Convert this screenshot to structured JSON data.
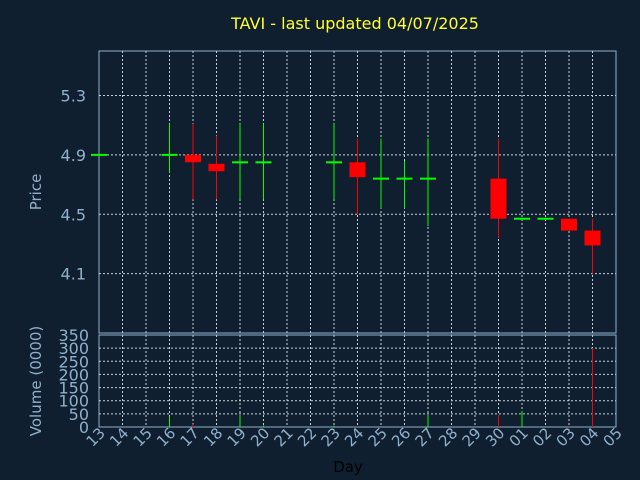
{
  "header": {
    "title": "TAVI - last updated 04/07/2025"
  },
  "chart_data": [
    {
      "type": "candlestick",
      "ylabel": "Price",
      "ylim": [
        3.7,
        5.6
      ],
      "yticks": [
        "4.1",
        "4.5",
        "4.9",
        "5.3"
      ],
      "grid": true,
      "colors": {
        "up": "#00ff00",
        "down": "#ff0000"
      },
      "candles": [
        {
          "day": "13",
          "open": 4.9,
          "high": 4.9,
          "low": 4.9,
          "close": 4.9
        },
        {
          "day": "16",
          "open": 4.9,
          "high": 5.11,
          "low": 4.78,
          "close": 4.9
        },
        {
          "day": "17",
          "open": 4.9,
          "high": 5.11,
          "low": 4.6,
          "close": 4.85
        },
        {
          "day": "18",
          "open": 4.84,
          "high": 5.03,
          "low": 4.6,
          "close": 4.79
        },
        {
          "day": "19",
          "open": 4.85,
          "high": 5.11,
          "low": 4.6,
          "close": 4.85
        },
        {
          "day": "20",
          "open": 4.85,
          "high": 5.11,
          "low": 4.6,
          "close": 4.85
        },
        {
          "day": "23",
          "open": 4.85,
          "high": 5.11,
          "low": 4.6,
          "close": 4.85
        },
        {
          "day": "24",
          "open": 4.85,
          "high": 5.01,
          "low": 4.5,
          "close": 4.75
        },
        {
          "day": "25",
          "open": 4.74,
          "high": 5.01,
          "low": 4.54,
          "close": 4.74
        },
        {
          "day": "26",
          "open": 4.74,
          "high": 4.86,
          "low": 4.54,
          "close": 4.74
        },
        {
          "day": "27",
          "open": 4.74,
          "high": 5.01,
          "low": 4.42,
          "close": 4.74
        },
        {
          "day": "30",
          "open": 4.74,
          "high": 5.01,
          "low": 4.34,
          "close": 4.47
        },
        {
          "day": "01",
          "open": 4.47,
          "high": 4.47,
          "low": 4.47,
          "close": 4.47
        },
        {
          "day": "02",
          "open": 4.47,
          "high": 4.47,
          "low": 4.47,
          "close": 4.47
        },
        {
          "day": "03",
          "open": 4.47,
          "high": 4.47,
          "low": 4.39,
          "close": 4.39
        },
        {
          "day": "04",
          "open": 4.39,
          "high": 4.47,
          "low": 4.1,
          "close": 4.29
        }
      ]
    },
    {
      "type": "bar",
      "ylabel": "Volume (0000)",
      "xlabel": "Day",
      "ylim": [
        0,
        350
      ],
      "yticks": [
        "0",
        "50",
        "100",
        "150",
        "200",
        "250",
        "300",
        "350"
      ],
      "categories": [
        "13",
        "14",
        "15",
        "16",
        "17",
        "18",
        "19",
        "20",
        "21",
        "22",
        "23",
        "24",
        "25",
        "26",
        "27",
        "28",
        "29",
        "30",
        "01",
        "02",
        "03",
        "04",
        "05"
      ],
      "bars": [
        {
          "day": "16",
          "value": 40,
          "color": "#00ff00"
        },
        {
          "day": "17",
          "value": 10,
          "color": "#ff0000"
        },
        {
          "day": "19",
          "value": 45,
          "color": "#00ff00"
        },
        {
          "day": "20",
          "value": 5,
          "color": "#00ff00"
        },
        {
          "day": "23",
          "value": 5,
          "color": "#00ff00"
        },
        {
          "day": "24",
          "value": 5,
          "color": "#ff0000"
        },
        {
          "day": "27",
          "value": 45,
          "color": "#00ff00"
        },
        {
          "day": "30",
          "value": 45,
          "color": "#ff0000"
        },
        {
          "day": "01",
          "value": 60,
          "color": "#00ff00"
        },
        {
          "day": "03",
          "value": 5,
          "color": "#ff0000"
        },
        {
          "day": "04",
          "value": 300,
          "color": "#ff0000"
        }
      ]
    }
  ]
}
